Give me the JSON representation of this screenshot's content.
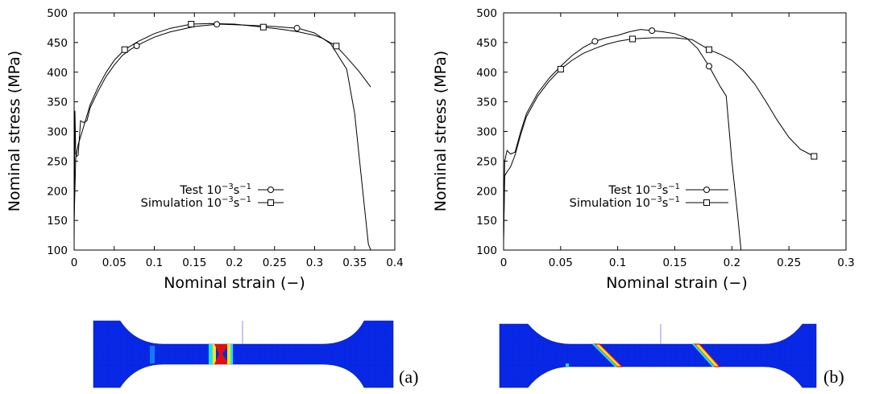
{
  "chart_data": [
    {
      "type": "line",
      "panel": "(a)",
      "xlabel": "Nominal strain (−)",
      "ylabel": "Nominal stress (MPa)",
      "xlim": [
        0,
        0.4
      ],
      "ylim": [
        100,
        500
      ],
      "xticks": [
        0,
        0.05,
        0.1,
        0.15,
        0.2,
        0.25,
        0.3,
        0.35,
        0.4
      ],
      "xtick_labels": [
        "0",
        "0.05",
        "0.1",
        "0.15",
        "0.2",
        "0.25",
        "0.3",
        "0.35",
        "0.4"
      ],
      "yticks": [
        100,
        150,
        200,
        250,
        300,
        350,
        400,
        450,
        500
      ],
      "ytick_labels": [
        "100",
        "150",
        "200",
        "250",
        "300",
        "350",
        "400",
        "450",
        "500"
      ],
      "legend_position": "center-right",
      "series": [
        {
          "name": "Test 10⁻³s⁻¹",
          "marker": "circle",
          "x": [
            0,
            0.001,
            0.002,
            0.003,
            0.005,
            0.008,
            0.012,
            0.016,
            0.02,
            0.03,
            0.04,
            0.05,
            0.06,
            0.07,
            0.08,
            0.1,
            0.12,
            0.15,
            0.18,
            0.2,
            0.22,
            0.25,
            0.28,
            0.3,
            0.32,
            0.34,
            0.35,
            0.36,
            0.367,
            0.37
          ],
          "y": [
            110,
            335,
            262,
            258,
            260,
            318,
            315,
            318,
            340,
            368,
            393,
            412,
            428,
            438,
            446,
            459,
            468,
            477,
            481,
            480,
            479,
            477,
            474,
            466,
            448,
            405,
            330,
            200,
            110,
            100
          ],
          "marker_x": [
            0.078,
            0.178,
            0.278
          ]
        },
        {
          "name": "Simulation 10⁻³s⁻¹",
          "marker": "square",
          "x": [
            0,
            0.002,
            0.005,
            0.01,
            0.02,
            0.03,
            0.04,
            0.05,
            0.063,
            0.08,
            0.1,
            0.12,
            0.146,
            0.17,
            0.2,
            0.236,
            0.26,
            0.28,
            0.3,
            0.31,
            0.327,
            0.34,
            0.355,
            0.37
          ],
          "y": [
            150,
            255,
            278,
            300,
            345,
            375,
            400,
            420,
            438,
            452,
            465,
            474,
            481,
            482,
            481,
            476,
            472,
            468,
            462,
            457,
            444,
            425,
            402,
            375
          ],
          "marker_x": [
            0.063,
            0.146,
            0.236,
            0.327
          ]
        }
      ]
    },
    {
      "type": "line",
      "panel": "(b)",
      "xlabel": "Nominal strain (−)",
      "ylabel": "Nominal stress (MPa)",
      "xlim": [
        0,
        0.3
      ],
      "ylim": [
        100,
        500
      ],
      "xticks": [
        0,
        0.05,
        0.1,
        0.15,
        0.2,
        0.25,
        0.3
      ],
      "xtick_labels": [
        "0",
        "0.05",
        "0.1",
        "0.15",
        "0.2",
        "0.25",
        "0.3"
      ],
      "yticks": [
        100,
        150,
        200,
        250,
        300,
        350,
        400,
        450,
        500
      ],
      "ytick_labels": [
        "100",
        "150",
        "200",
        "250",
        "300",
        "350",
        "400",
        "450",
        "500"
      ],
      "legend_position": "center-right",
      "series": [
        {
          "name": "Test 10⁻³s⁻¹",
          "marker": "circle",
          "x": [
            0,
            0.001,
            0.003,
            0.006,
            0.01,
            0.015,
            0.02,
            0.03,
            0.04,
            0.05,
            0.06,
            0.07,
            0.08,
            0.09,
            0.1,
            0.11,
            0.12,
            0.13,
            0.14,
            0.15,
            0.16,
            0.17,
            0.18,
            0.19,
            0.195,
            0.2,
            0.205,
            0.208
          ],
          "y": [
            110,
            250,
            268,
            262,
            265,
            300,
            330,
            365,
            390,
            410,
            428,
            442,
            452,
            458,
            462,
            468,
            472,
            470,
            468,
            465,
            458,
            440,
            410,
            375,
            360,
            250,
            160,
            100
          ],
          "marker_x": [
            0.08,
            0.13,
            0.18
          ]
        },
        {
          "name": "Simulation 10⁻³s⁻¹",
          "marker": "square",
          "x": [
            0,
            0.001,
            0.003,
            0.006,
            0.01,
            0.015,
            0.02,
            0.03,
            0.04,
            0.05,
            0.06,
            0.07,
            0.08,
            0.09,
            0.1,
            0.113,
            0.13,
            0.15,
            0.165,
            0.18,
            0.19,
            0.2,
            0.21,
            0.22,
            0.23,
            0.24,
            0.25,
            0.26,
            0.272
          ],
          "y": [
            120,
            225,
            232,
            240,
            260,
            295,
            325,
            360,
            385,
            405,
            420,
            432,
            440,
            447,
            452,
            456,
            458,
            458,
            455,
            438,
            430,
            420,
            403,
            380,
            350,
            318,
            290,
            270,
            258
          ],
          "marker_x": [
            0.05,
            0.113,
            0.18,
            0.272
          ]
        }
      ]
    }
  ],
  "contour_images": [
    {
      "caption": "(a)",
      "fill_color": "#0828e8"
    },
    {
      "caption": "(b)",
      "fill_color": "#0828e8"
    }
  ]
}
